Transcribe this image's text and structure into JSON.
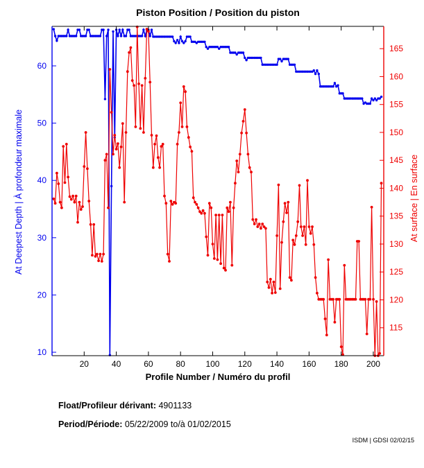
{
  "title": "Piston Position / Position du piston",
  "footer": {
    "float_label": "Float/Profileur dérivant:",
    "float_value": "4901133",
    "period_label": "Period/Période:",
    "period_value": "05/22/2009  to/à  01/02/2015",
    "credit": "ISDM | GDSI 02/02/15"
  },
  "colors": {
    "left_axis": "#0000EE",
    "right_axis": "#EE0000",
    "frame": "#000000",
    "background": "#FFFFFF"
  },
  "chart_data": {
    "type": "line",
    "title": "Piston Position / Position du piston",
    "xlabel": "Profile Number / Numéro du profil",
    "ylabel_left": "At Deepest Depth | À profondeur maximale",
    "ylabel_right": "At surface | En surface",
    "grid": false,
    "legend_position": "none",
    "xlim": [
      0,
      206.5
    ],
    "ylim_left": [
      9.4,
      66.9
    ],
    "ylim_right": [
      110,
      169
    ],
    "x_ticks": [
      20,
      40,
      60,
      80,
      100,
      120,
      140,
      160,
      180,
      200
    ],
    "yticks_left": [
      10,
      20,
      30,
      40,
      50,
      60
    ],
    "yticks_right": [
      115,
      120,
      125,
      130,
      135,
      140,
      145,
      150,
      155,
      160,
      165
    ],
    "x_start": 1,
    "series": [
      {
        "name": "At Deepest Depth | À profondeur maximale",
        "axis": "left",
        "color": "#0000EE",
        "values": [
          66.4,
          65.2,
          64.4,
          65.2,
          65.2,
          65.2,
          65.2,
          65.2,
          65.2,
          66.3,
          65.2,
          65.2,
          65.2,
          65.2,
          65.2,
          66.3,
          66.3,
          65.2,
          65.2,
          65.2,
          65.2,
          66.3,
          66.3,
          65.2,
          65.2,
          65.2,
          65.2,
          65.2,
          65.2,
          65.2,
          66.3,
          66.3,
          54.2,
          65.2,
          66.3,
          9.5,
          39.0,
          66.0,
          47.5,
          66.3,
          65.2,
          66.3,
          65.2,
          66.3,
          65.2,
          65.2,
          66.3,
          66.3,
          65.2,
          65.2,
          65.2,
          65.2,
          65.2,
          65.2,
          65.2,
          65.2,
          66.3,
          65.2,
          66.3,
          66.3,
          65.2,
          66.3,
          65.1,
          65.1,
          65.1,
          65.1,
          65.1,
          65.1,
          65.1,
          65.1,
          65.1,
          65.1,
          65.1,
          65.1,
          65.1,
          64.3,
          64.0,
          64.5,
          64.0,
          65.1,
          64.3,
          64.0,
          64.3,
          65.1,
          65.1,
          65.1,
          64.2,
          64.2,
          64.2,
          64.0,
          64.2,
          64.2,
          64.2,
          64.2,
          64.2,
          63.3,
          63.0,
          63.3,
          63.3,
          63.3,
          63.3,
          63.3,
          63.3,
          63.0,
          63.3,
          63.3,
          63.3,
          63.3,
          63.3,
          63.3,
          62.3,
          62.3,
          62.3,
          62.3,
          62.0,
          62.3,
          62.3,
          62.3,
          62.3,
          61.4,
          61.0,
          61.4,
          61.4,
          61.4,
          61.4,
          61.4,
          61.4,
          61.4,
          61.4,
          61.4,
          60.2,
          60.2,
          60.2,
          60.2,
          60.2,
          60.2,
          60.2,
          60.2,
          60.2,
          60.2,
          61.2,
          61.2,
          60.8,
          61.2,
          61.2,
          61.2,
          61.2,
          60.2,
          60.2,
          60.2,
          60.2,
          59.0,
          59.0,
          59.0,
          59.0,
          59.0,
          59.0,
          59.0,
          59.0,
          59.0,
          59.0,
          59.0,
          59.2,
          58.6,
          59.2,
          58.6,
          56.4,
          56.4,
          56.4,
          56.4,
          56.4,
          56.4,
          56.4,
          56.4,
          56.4,
          57.0,
          56.4,
          56.6,
          55.2,
          55.2,
          55.2,
          54.3,
          54.3,
          54.3,
          54.3,
          54.3,
          54.3,
          54.3,
          54.3,
          54.3,
          54.3,
          54.3,
          54.3,
          53.4,
          53.6,
          53.4,
          53.4,
          53.4,
          54.3,
          54.0,
          54.3,
          54.0,
          54.3,
          54.3,
          54.6
        ]
      },
      {
        "name": "At surface | En surface",
        "axis": "right",
        "color": "#EE0000",
        "values": [
          138.1,
          137.3,
          142.7,
          140.8,
          137.5,
          136.5,
          147.5,
          141.0,
          147.9,
          142.0,
          138.5,
          138.0,
          138.6,
          137.5,
          138.6,
          133.9,
          137.5,
          136.2,
          136.7,
          143.9,
          150.0,
          143.5,
          137.7,
          133.5,
          128.0,
          133.5,
          127.8,
          128.2,
          127.0,
          128.2,
          126.9,
          128.2,
          145.0,
          146.1,
          136.5,
          161.3,
          153.6,
          146.1,
          149.5,
          147.0,
          148.0,
          143.7,
          147.4,
          151.6,
          137.5,
          150.0,
          160.9,
          164.3,
          165.2,
          159.3,
          158.4,
          151.0,
          168.9,
          158.7,
          150.7,
          158.4,
          150.0,
          159.7,
          168.5,
          168.1,
          159.0,
          149.5,
          143.7,
          147.9,
          149.4,
          145.5,
          143.7,
          147.5,
          147.9,
          138.6,
          137.3,
          128.2,
          126.9,
          137.7,
          137.1,
          137.5,
          137.3,
          147.9,
          150.0,
          155.3,
          151.0,
          158.2,
          157.3,
          151.0,
          149.1,
          147.4,
          146.6,
          138.3,
          137.5,
          137.1,
          136.5,
          135.8,
          135.5,
          136.0,
          135.5,
          131.3,
          128.0,
          137.3,
          136.5,
          130.0,
          127.4,
          135.2,
          127.2,
          135.2,
          126.5,
          135.2,
          125.7,
          125.3,
          136.5,
          135.8,
          137.5,
          126.2,
          136.5,
          140.9,
          144.9,
          142.9,
          146.1,
          149.9,
          152.0,
          154.1,
          149.9,
          146.1,
          143.7,
          142.9,
          134.4,
          133.6,
          134.4,
          133.1,
          133.6,
          132.8,
          133.6,
          133.1,
          132.8,
          123.2,
          122.2,
          123.7,
          121.2,
          123.2,
          121.3,
          131.5,
          140.6,
          122.0,
          130.3,
          134.0,
          137.3,
          135.6,
          137.5,
          124.0,
          123.5,
          130.7,
          129.9,
          131.5,
          134.0,
          140.5,
          133.1,
          131.5,
          133.1,
          129.9,
          141.4,
          133.1,
          131.9,
          133.1,
          129.9,
          124.0,
          121.2,
          120.1,
          120.1,
          120.1,
          120.1,
          116.6,
          113.7,
          127.2,
          120.1,
          120.1,
          120.1,
          116.0,
          120.1,
          120.1,
          120.1,
          111.6,
          110.2,
          126.2,
          120.1,
          120.1,
          120.1,
          120.1,
          120.1,
          120.1,
          120.1,
          130.5,
          130.5,
          120.1,
          120.1,
          120.1,
          120.1,
          113.9,
          120.1,
          120.1,
          136.6,
          120.1,
          110.0,
          119.7,
          110.0,
          110.4,
          140.9
        ]
      }
    ]
  }
}
